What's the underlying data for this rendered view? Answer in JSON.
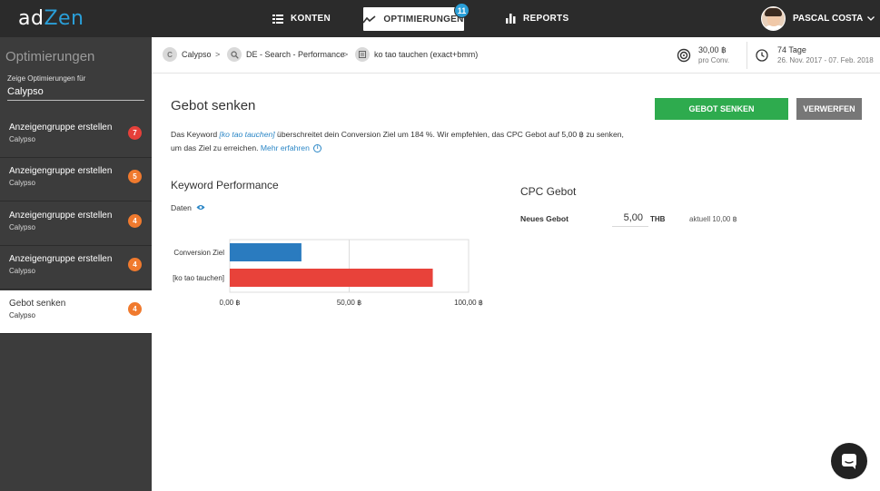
{
  "app": {
    "logo_ad": "ad",
    "logo_zen": "Zen"
  },
  "nav": {
    "konten": "KONTEN",
    "optimierungen": "OPTIMIERUNGEN",
    "optimierungen_badge": "11",
    "reports": "REPORTS"
  },
  "user": {
    "name": "PASCAL COSTA"
  },
  "sidebar": {
    "title": "Optimierungen",
    "subtitle": "Zeige Optimierungen für",
    "account": "Calypso",
    "items": [
      {
        "title": "Anzeigengruppe erstellen",
        "sub": "Calypso",
        "count": "7",
        "color": "#e5403a"
      },
      {
        "title": "Anzeigengruppe erstellen",
        "sub": "Calypso",
        "count": "5",
        "color": "#f07a2e"
      },
      {
        "title": "Anzeigengruppe erstellen",
        "sub": "Calypso",
        "count": "4",
        "color": "#f07a2e"
      },
      {
        "title": "Anzeigengruppe erstellen",
        "sub": "Calypso",
        "count": "4",
        "color": "#f07a2e"
      },
      {
        "title": "Gebot senken",
        "sub": "Calypso",
        "count": "4",
        "color": "#f07a2e"
      }
    ]
  },
  "breadcrumb": {
    "c1_icon": "C",
    "c1": "Calypso",
    "sep": ">",
    "c2": "DE - Search - Performance",
    "c3": "ko tao tauchen (exact+bmm)"
  },
  "stats": {
    "cpc_value": "30,00 ฿",
    "cpc_label": "pro Conv.",
    "days": "74 Tage",
    "range": "26. Nov. 2017 - 07. Feb. 2018"
  },
  "main": {
    "title": "Gebot senken",
    "btn_primary": "GEBOT SENKEN",
    "btn_secondary": "VERWERFEN",
    "desc_pre": "Das Keyword ",
    "desc_kw": "[ko tao tauchen]",
    "desc_post1": " überschreitet dein Conversion Ziel um 184 %. Wir empfehlen, das CPC Gebot auf 5,00 ฿ zu senken,",
    "desc_post2": "um das Ziel zu erreichen. ",
    "desc_more": "Mehr erfahren",
    "perf_title": "Keyword Performance",
    "daten": "Daten",
    "cpc_title": "CPC Gebot",
    "new_bid_label": "Neues Gebot",
    "new_bid_value": "5,00",
    "unit": "THB",
    "current": "aktuell 10,00 ฿"
  },
  "chart_data": {
    "type": "bar",
    "orientation": "horizontal",
    "categories": [
      "Conversion Ziel",
      "[ko tao tauchen]"
    ],
    "values": [
      30,
      85
    ],
    "colors": [
      "#2a7bbf",
      "#e8423a"
    ],
    "xlim": [
      0,
      100
    ],
    "ticks": [
      0,
      50,
      100
    ],
    "tick_labels": [
      "0,00 ฿",
      "50,00 ฿",
      "100,00 ฿"
    ],
    "grid": true
  }
}
